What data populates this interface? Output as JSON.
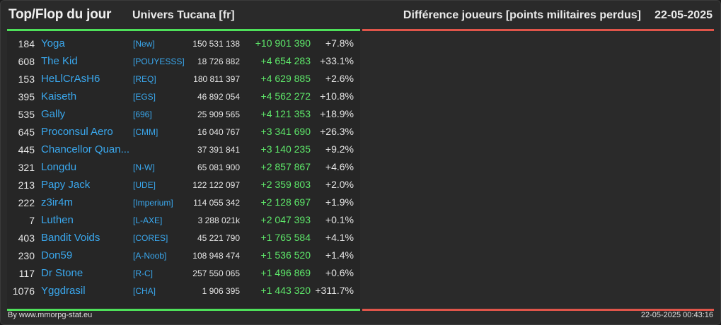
{
  "header": {
    "title": "Top/Flop du jour",
    "universe": "Univers Tucana [fr]",
    "metric": "Différence joueurs [points militaires perdus]",
    "date": "22-05-2025"
  },
  "colors": {
    "top_accent": "#4ee05a",
    "flop_accent": "#e0554a",
    "name_link": "#3aa8ee",
    "positive_diff": "#5ee86a"
  },
  "top_rows": [
    {
      "rank": "184",
      "name": "Yoga",
      "alliance": "[New]",
      "points": "150 531 138",
      "diff": "+10 901 390",
      "pct": "+7.8%"
    },
    {
      "rank": "608",
      "name": "The Kid",
      "alliance": "[POUYESSS]",
      "points": "18 726 882",
      "diff": "+4 654 283",
      "pct": "+33.1%"
    },
    {
      "rank": "153",
      "name": "HeLlCrAsH6",
      "alliance": "[REQ]",
      "points": "180 811 397",
      "diff": "+4 629 885",
      "pct": "+2.6%"
    },
    {
      "rank": "395",
      "name": "Kaiseth",
      "alliance": "[EGS]",
      "points": "46 892 054",
      "diff": "+4 562 272",
      "pct": "+10.8%"
    },
    {
      "rank": "535",
      "name": "Gally",
      "alliance": "[696]",
      "points": "25 909 565",
      "diff": "+4 121 353",
      "pct": "+18.9%"
    },
    {
      "rank": "645",
      "name": "Proconsul Aero",
      "alliance": "[CMM]",
      "points": "16 040 767",
      "diff": "+3 341 690",
      "pct": "+26.3%"
    },
    {
      "rank": "445",
      "name": "Chancellor Quan...",
      "alliance": "",
      "points": "37 391 841",
      "diff": "+3 140 235",
      "pct": "+9.2%"
    },
    {
      "rank": "321",
      "name": "Longdu",
      "alliance": "[N-W]",
      "points": "65 081 900",
      "diff": "+2 857 867",
      "pct": "+4.6%"
    },
    {
      "rank": "213",
      "name": "Papy Jack",
      "alliance": "[UDE]",
      "points": "122 122 097",
      "diff": "+2 359 803",
      "pct": "+2.0%"
    },
    {
      "rank": "222",
      "name": "z3ir4m",
      "alliance": "[Imperium]",
      "points": "114 055 342",
      "diff": "+2 128 697",
      "pct": "+1.9%"
    },
    {
      "rank": "7",
      "name": "Luthen",
      "alliance": "[L-AXE]",
      "points": "3 288 021k",
      "diff": "+2 047 393",
      "pct": "+0.1%"
    },
    {
      "rank": "403",
      "name": "Bandit Voids",
      "alliance": "[CORES]",
      "points": "45 221 790",
      "diff": "+1 765 584",
      "pct": "+4.1%"
    },
    {
      "rank": "230",
      "name": "Don59",
      "alliance": "[A-Noob]",
      "points": "108 948 474",
      "diff": "+1 536 520",
      "pct": "+1.4%"
    },
    {
      "rank": "117",
      "name": "Dr Stone",
      "alliance": "[R-C]",
      "points": "257 550 065",
      "diff": "+1 496 869",
      "pct": "+0.6%"
    },
    {
      "rank": "1076",
      "name": "Yggdrasil",
      "alliance": "[CHA]",
      "points": "1 906 395",
      "diff": "+1 443 320",
      "pct": "+311.7%"
    }
  ],
  "footer": {
    "credit": "By www.mmorpg-stat.eu",
    "timestamp": "22-05-2025 00:43:16"
  }
}
